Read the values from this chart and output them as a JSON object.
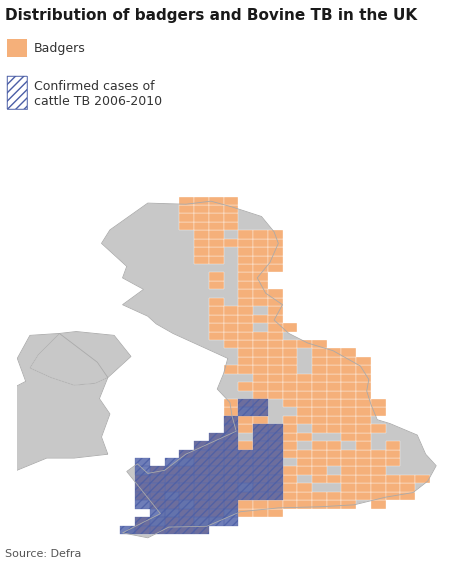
{
  "title": "Distribution of badgers and Bovine TB in the UK",
  "title_fontsize": 11,
  "legend_badger_label": "Badgers",
  "legend_tb_label_line1": "Confirmed cases of",
  "legend_tb_label_line2": "cattle TB 2006-2010",
  "source_text": "Source: Defra",
  "badger_color": "#F5B07A",
  "tb_color": "#4B5EA6",
  "background_color": "#ffffff",
  "land_color": "#C8C8C8",
  "figsize": [
    4.64,
    5.65
  ],
  "dpi": 100,
  "lon_min": -8.2,
  "lon_max": 2.0,
  "lat_min": 49.8,
  "lat_max": 61.0,
  "grid_dlon": 0.35,
  "grid_dlat": 0.22
}
